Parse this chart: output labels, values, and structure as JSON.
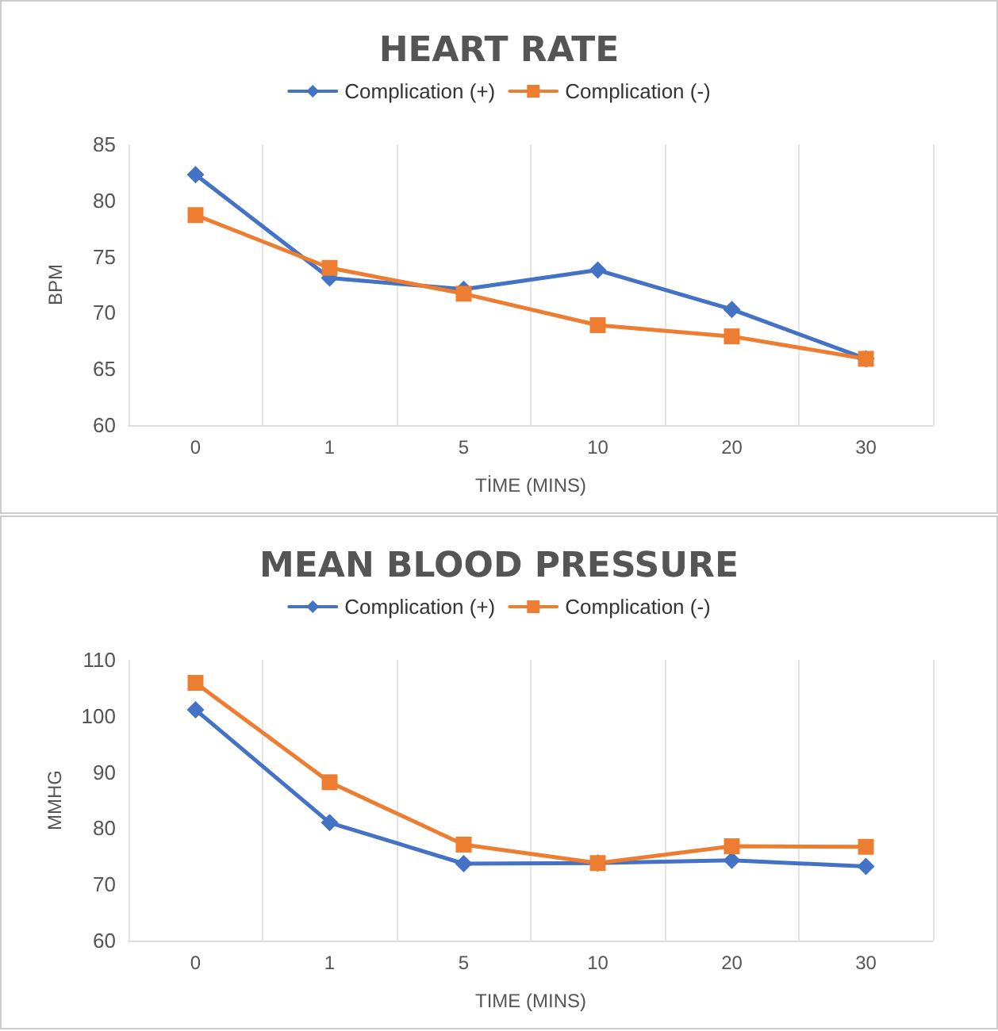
{
  "chart_data": [
    {
      "type": "line",
      "title": "HEART RATE",
      "xlabel": "TİME (MINS)",
      "ylabel": "BPM",
      "categories": [
        "0",
        "1",
        "5",
        "10",
        "20",
        "30"
      ],
      "series": [
        {
          "name": "Complication (+)",
          "color": "#4472c4",
          "marker": "diamond",
          "values": [
            82.3,
            73.1,
            72.1,
            73.8,
            70.3,
            65.9
          ]
        },
        {
          "name": "Complication (-)",
          "color": "#ed7d31",
          "marker": "square",
          "values": [
            78.7,
            74.0,
            71.7,
            68.9,
            67.9,
            65.9
          ]
        }
      ],
      "ylim": [
        60,
        85
      ],
      "yticks": [
        60,
        65,
        70,
        75,
        80,
        85
      ],
      "grid": "x",
      "legend": "top"
    },
    {
      "type": "line",
      "title": "MEAN BLOOD PRESSURE",
      "xlabel": "TIME (MINS)",
      "ylabel": "MMHG",
      "categories": [
        "0",
        "1",
        "5",
        "10",
        "20",
        "30"
      ],
      "series": [
        {
          "name": "Complication (+)",
          "color": "#4472c4",
          "marker": "diamond",
          "values": [
            101.1,
            81.0,
            73.7,
            73.8,
            74.3,
            73.2
          ]
        },
        {
          "name": "Complication (-)",
          "color": "#ed7d31",
          "marker": "square",
          "values": [
            105.9,
            88.2,
            77.1,
            73.8,
            76.8,
            76.7
          ]
        }
      ],
      "ylim": [
        60,
        110
      ],
      "yticks": [
        60,
        70,
        80,
        90,
        100,
        110
      ],
      "grid": "x",
      "legend": "top"
    }
  ]
}
